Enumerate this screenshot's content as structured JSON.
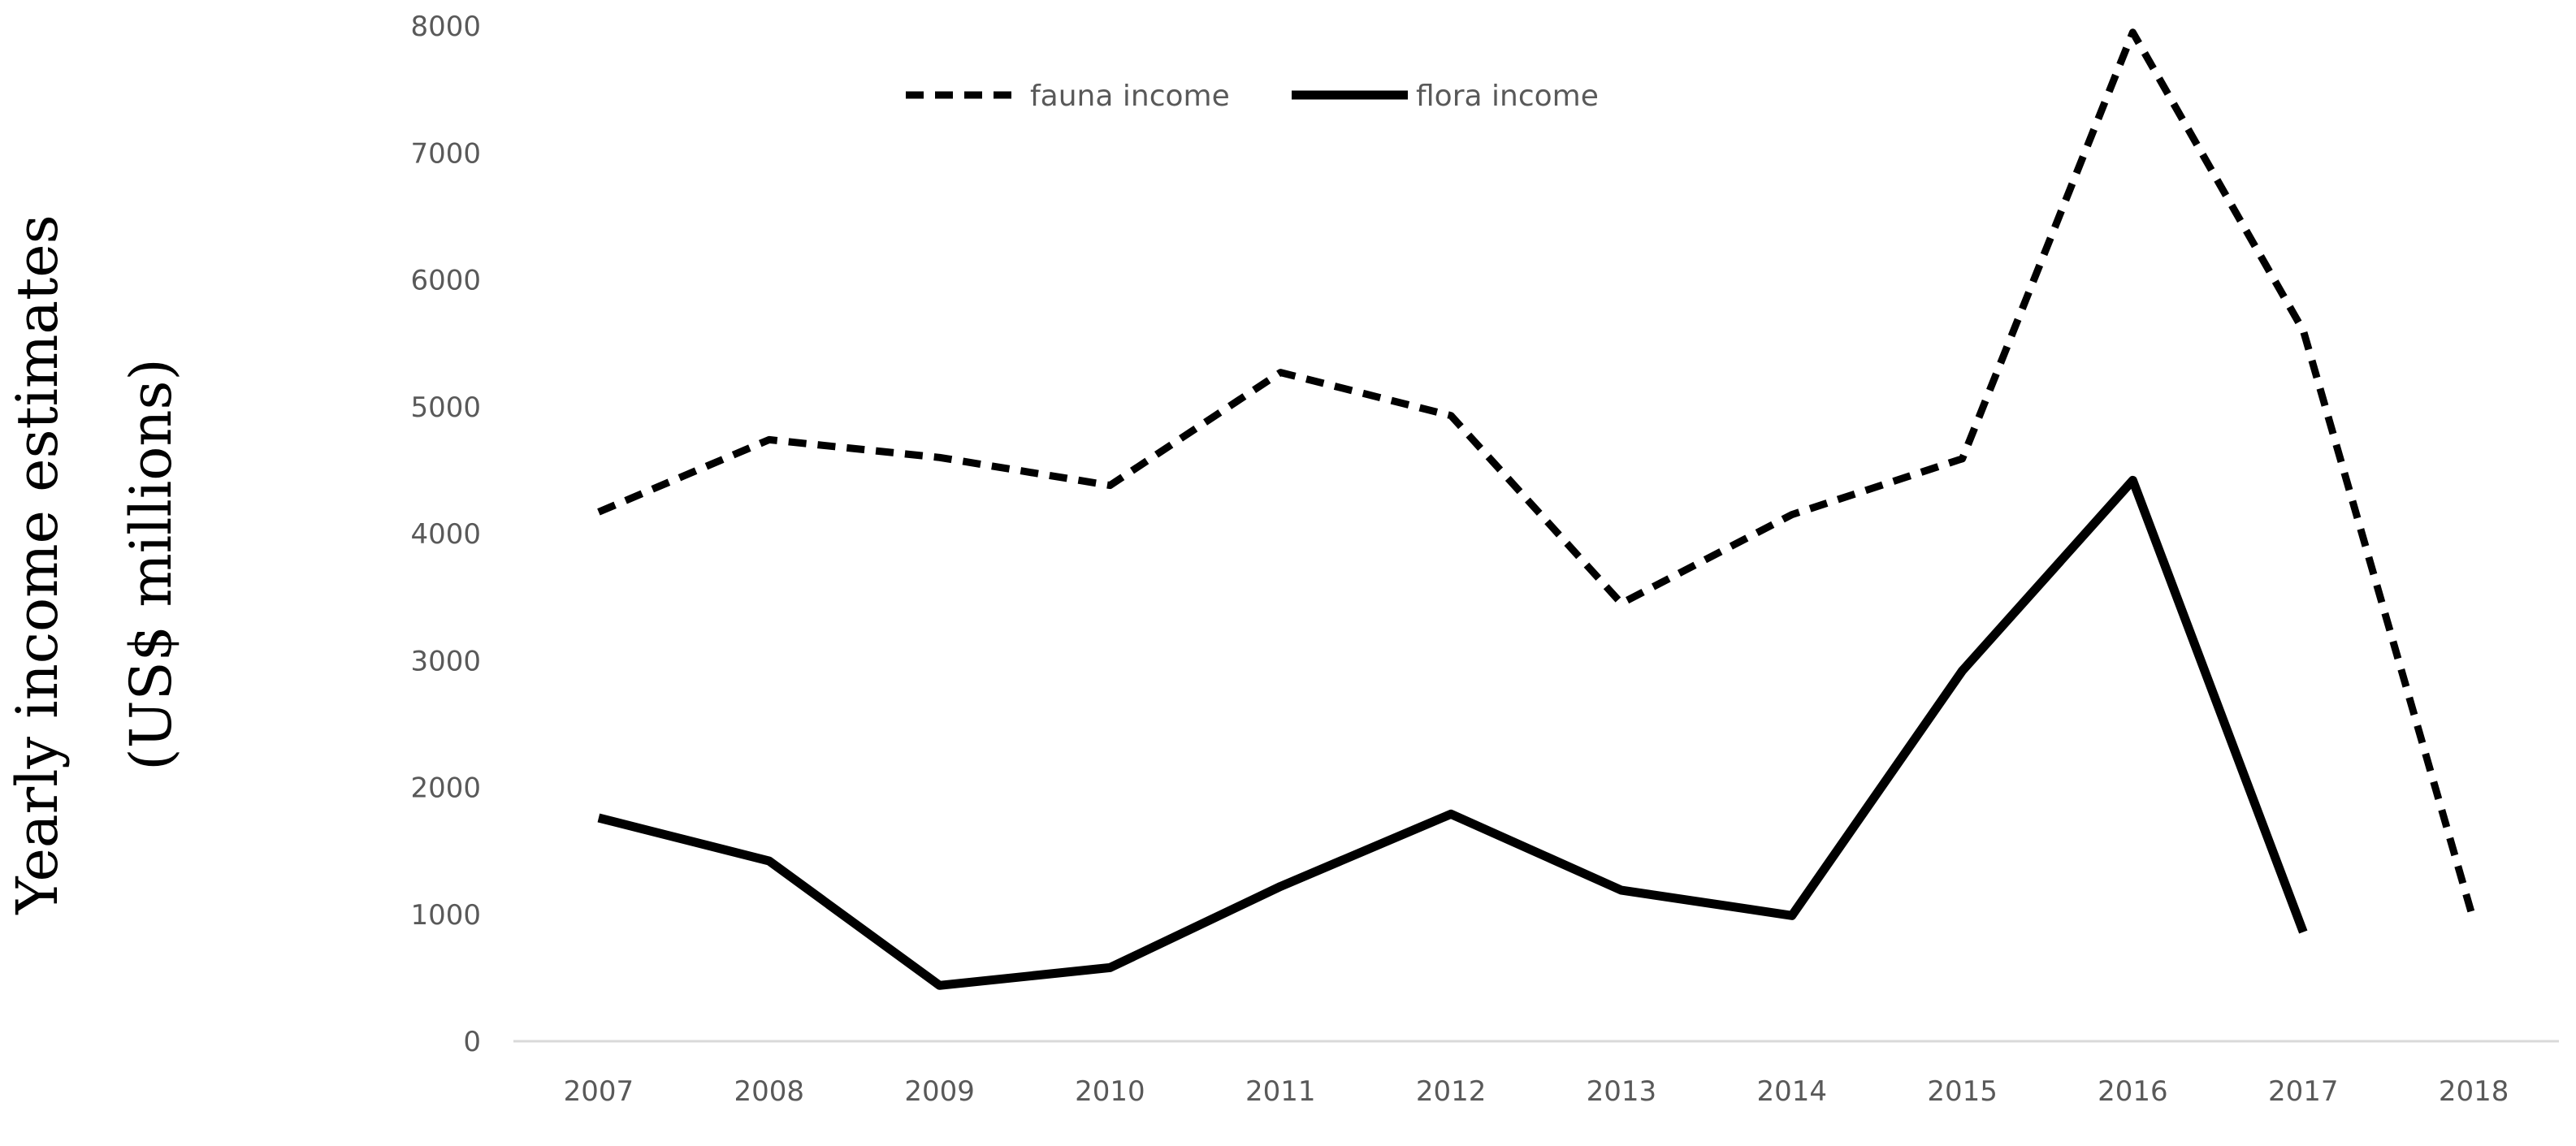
{
  "chart_data": {
    "type": "line",
    "title": "",
    "ylabel_line1": "Yearly income estimates",
    "ylabel_line2": "(US$ millions)",
    "xlabel": "",
    "x": [
      "2007",
      "2008",
      "2009",
      "2010",
      "2011",
      "2012",
      "2013",
      "2014",
      "2015",
      "2016",
      "2017",
      "2018"
    ],
    "ylim": [
      0,
      8000
    ],
    "yticks": [
      0,
      1000,
      2000,
      3000,
      4000,
      5000,
      6000,
      7000,
      8000
    ],
    "grid": false,
    "legend_position": "top-center",
    "series": [
      {
        "name": "fauna income",
        "style": "dashed",
        "color": "#000000",
        "values": [
          4170,
          4740,
          4600,
          4380,
          5270,
          4930,
          3450,
          4150,
          4590,
          7950,
          5600,
          950
        ]
      },
      {
        "name": "flora income",
        "style": "solid",
        "color": "#000000",
        "values": [
          1760,
          1420,
          440,
          580,
          1220,
          1790,
          1190,
          990,
          2920,
          4420,
          860,
          null
        ]
      }
    ]
  }
}
